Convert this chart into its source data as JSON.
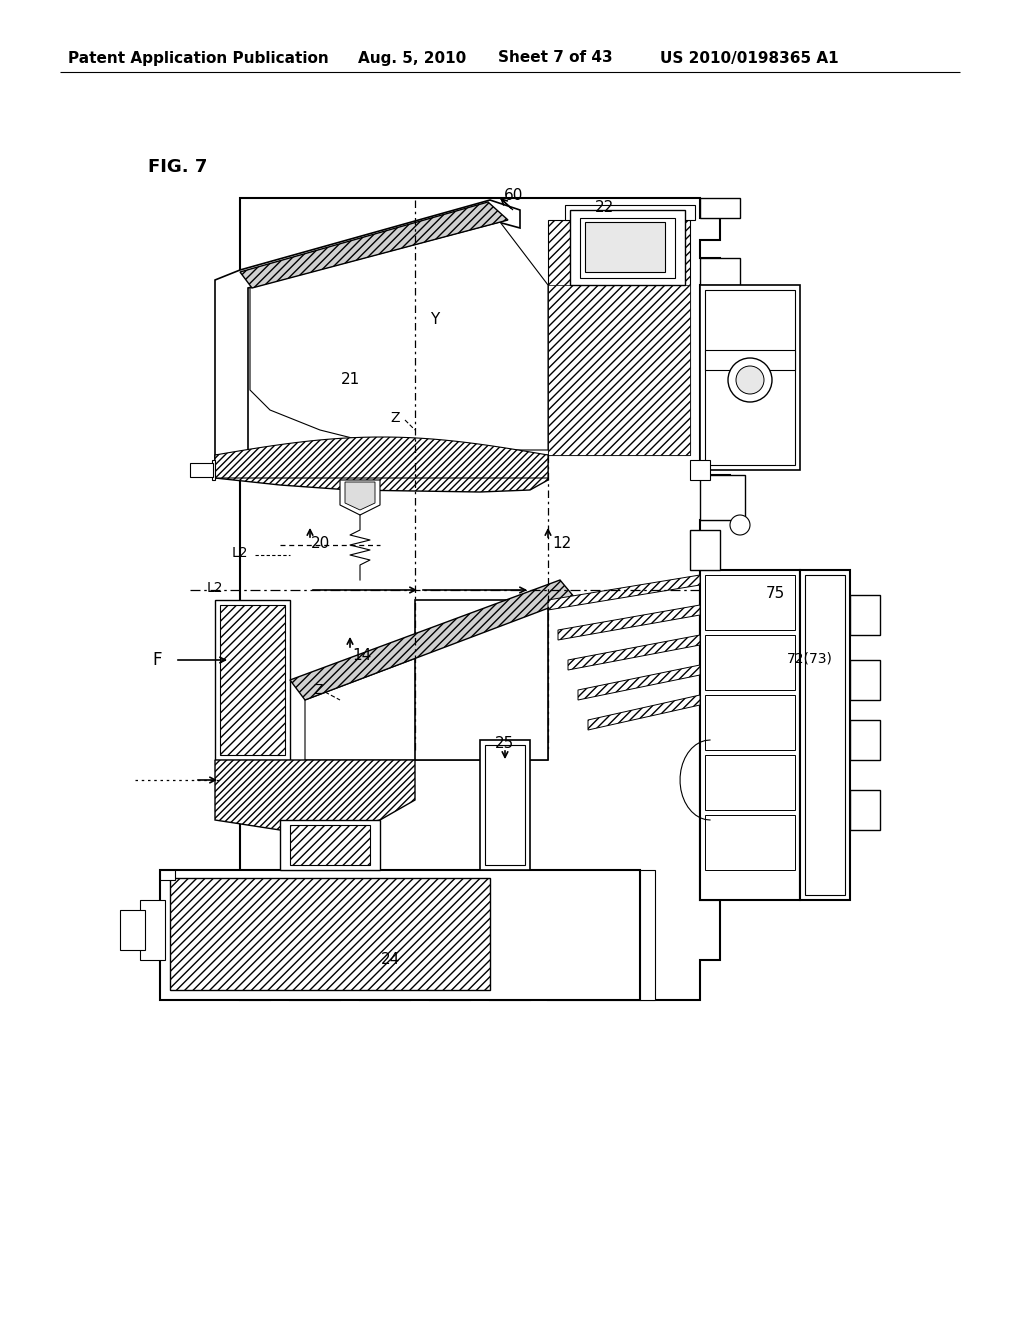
{
  "title_text": "Patent Application Publication",
  "date_text": "Aug. 5, 2010",
  "sheet_text": "Sheet 7 of 43",
  "patent_text": "US 2010/0198365 A1",
  "fig_label": "FIG. 7",
  "background_color": "#ffffff"
}
